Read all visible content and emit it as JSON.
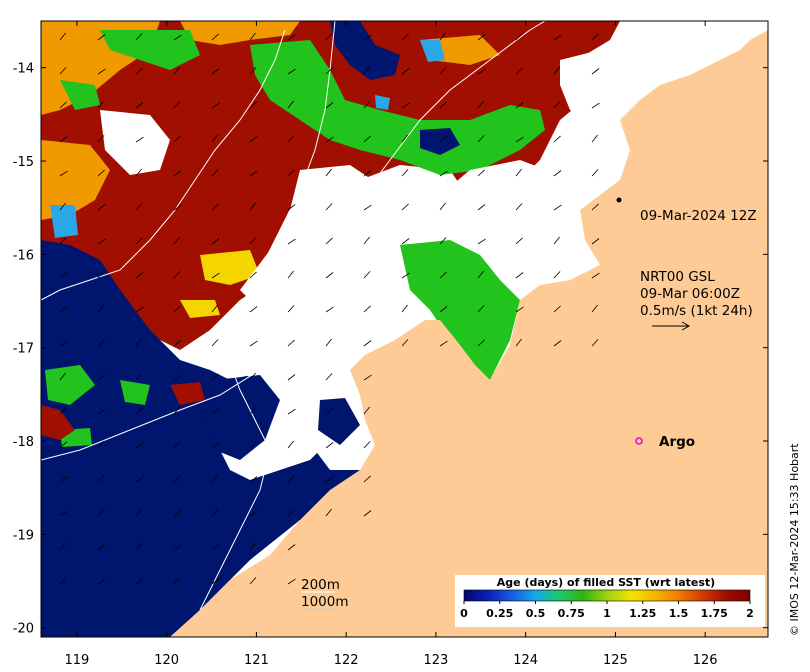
{
  "map": {
    "lon_range": [
      118.6,
      126.7
    ],
    "lat_range": [
      -20.1,
      -13.5
    ],
    "lon_ticks": [
      "119",
      "120",
      "121",
      "122",
      "123",
      "124",
      "125",
      "126"
    ],
    "lat_ticks": [
      "-14",
      "-15",
      "-16",
      "-17",
      "-18",
      "-19",
      "-20"
    ],
    "colors": {
      "land": "#FECB96",
      "background": "#ffffff",
      "deep_blue": "#00156E",
      "dark_red": "#A10F00",
      "orange": "#F09A00",
      "green": "#21C31C",
      "yellow": "#F4D500",
      "cyan": "#2AA7E6",
      "argo_marker": "#E000E0"
    }
  },
  "annotations": {
    "date_label": "09-Mar-2024 12Z",
    "nrt_line1": "NRT00 GSL",
    "nrt_line2": "09-Mar 06:00Z",
    "nrt_line3": "0.5m/s (1kt 24h)",
    "argo_label": "Argo",
    "depth_200": "200m",
    "depth_1000": "1000m"
  },
  "colorbar": {
    "title": "Age (days) of filled SST (wrt latest)",
    "ticks": [
      "0",
      "0.25",
      "0.5",
      "0.75",
      "1",
      "1.25",
      "1.5",
      "1.75",
      "2"
    ],
    "stops": [
      "#000A66",
      "#0A1FB8",
      "#1A5BE0",
      "#13A9E8",
      "#1FC96A",
      "#2FB412",
      "#9ED20E",
      "#F2E400",
      "#F5B700",
      "#F07C00",
      "#D23A00",
      "#A00C00",
      "#7A0000"
    ]
  },
  "credit": "© IMOS 12-Mar-2024 15:33 Hobart"
}
